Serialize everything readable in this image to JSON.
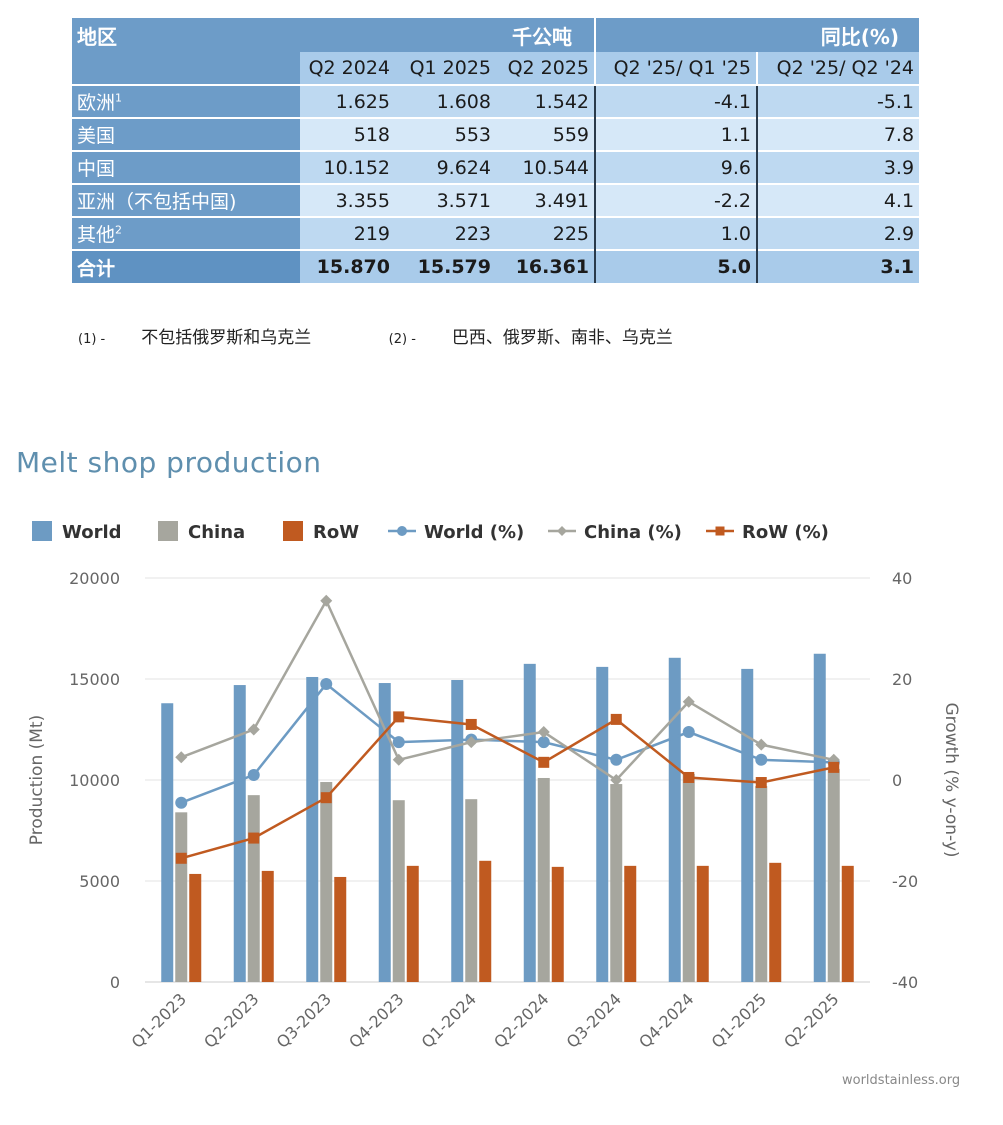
{
  "table": {
    "header_region": "地区",
    "header_unit": "千公吨",
    "header_yoy": "同比(%)",
    "columns": [
      "Q2 2024",
      "Q1 2025",
      "Q2 2025",
      "Q2 '25/ Q1 '25",
      "Q2 '25/ Q2 '24"
    ],
    "rows": [
      {
        "region": "欧洲",
        "note": "1",
        "values": [
          "1.625",
          "1.608",
          "1.542",
          "-4.1",
          "-5.1"
        ]
      },
      {
        "region": "美国",
        "note": "",
        "values": [
          "518",
          "553",
          "559",
          "1.1",
          "7.8"
        ]
      },
      {
        "region": "中国",
        "note": "",
        "values": [
          "10.152",
          "9.624",
          "10.544",
          "9.6",
          "3.9"
        ]
      },
      {
        "region": "亚洲（不包括中国)",
        "note": "",
        "values": [
          "3.355",
          "3.571",
          "3.491",
          "-2.2",
          "4.1"
        ]
      },
      {
        "region": "其他",
        "note": "2",
        "values": [
          "219",
          "223",
          "225",
          "1.0",
          "2.9"
        ]
      }
    ],
    "total": {
      "region": "合计",
      "values": [
        "15.870",
        "15.579",
        "16.361",
        "5.0",
        "3.1"
      ]
    }
  },
  "footnotes": {
    "fn1_num": "(1) -",
    "fn1_text": "不包括俄罗斯和乌克兰",
    "fn2_num": "(2) -",
    "fn2_text": "巴西、俄罗斯、南非、乌克兰"
  },
  "section_title": "Melt shop production",
  "watermark": "worldstainless.org",
  "colors": {
    "world_bar": "#6d9bc3",
    "china_bar": "#a6a69e",
    "row_bar": "#c05a20",
    "world_line": "#6d9bc3",
    "china_line": "#a6a69e",
    "row_line": "#c05a20"
  },
  "chart_data": {
    "type": "bar",
    "title": "Melt shop production",
    "categories": [
      "Q1-2023",
      "Q2-2023",
      "Q3-2023",
      "Q4-2023",
      "Q1-2024",
      "Q2-2024",
      "Q3-2024",
      "Q4-2024",
      "Q1-2025",
      "Q2-2025"
    ],
    "ylabel": "Production (Mt)",
    "y2label": "Growth (% y-on-y)",
    "ylim": [
      0,
      20000
    ],
    "y2lim": [
      -40,
      40
    ],
    "yticks": [
      "20000",
      "15000",
      "10000",
      "5000",
      "0"
    ],
    "y2ticks": [
      "40",
      "20",
      "0",
      "-20",
      "-40"
    ],
    "grid": true,
    "legend_position": "top",
    "legend": [
      "World",
      "China",
      "RoW",
      "World (%)",
      "China (%)",
      "RoW (%)"
    ],
    "series": [
      {
        "name": "World",
        "kind": "bar",
        "axis": "left",
        "values": [
          13800,
          14700,
          15100,
          14800,
          14950,
          15750,
          15600,
          16050,
          15500,
          16250
        ]
      },
      {
        "name": "China",
        "kind": "bar",
        "axis": "left",
        "values": [
          8400,
          9250,
          9900,
          9000,
          9050,
          10100,
          9800,
          10300,
          9700,
          10550
        ]
      },
      {
        "name": "RoW",
        "kind": "bar",
        "axis": "left",
        "values": [
          5350,
          5500,
          5200,
          5750,
          6000,
          5700,
          5750,
          5750,
          5900,
          5750
        ]
      },
      {
        "name": "World (%)",
        "kind": "line",
        "axis": "right",
        "marker": "circle",
        "values": [
          -4.5,
          1.0,
          19.0,
          7.5,
          8.0,
          7.5,
          4.0,
          9.5,
          4.0,
          3.5
        ]
      },
      {
        "name": "China (%)",
        "kind": "line",
        "axis": "right",
        "marker": "diamond",
        "values": [
          4.5,
          10.0,
          35.5,
          4.0,
          7.5,
          9.5,
          0.0,
          15.5,
          7.0,
          4.0
        ]
      },
      {
        "name": "RoW (%)",
        "kind": "line",
        "axis": "right",
        "marker": "square",
        "values": [
          -15.5,
          -11.5,
          -3.5,
          12.5,
          11.0,
          3.5,
          12.0,
          0.5,
          -0.5,
          2.5
        ]
      }
    ]
  }
}
